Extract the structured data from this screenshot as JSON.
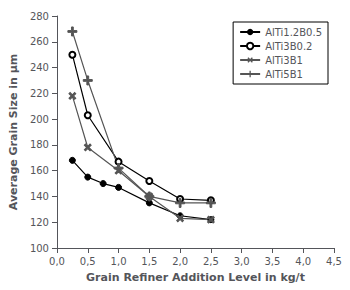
{
  "chart_data": {
    "type": "line",
    "xlabel": "Grain Refiner Addition Level in kg/t",
    "ylabel": "Average Grain Size in μm",
    "xlim": [
      0.0,
      4.5
    ],
    "ylim": [
      100,
      280
    ],
    "xticks": [
      {
        "value": 0.0,
        "label": "0,0"
      },
      {
        "value": 0.5,
        "label": "0,5"
      },
      {
        "value": 1.0,
        "label": "1,0"
      },
      {
        "value": 1.5,
        "label": "1,5"
      },
      {
        "value": 2.0,
        "label": "2,0"
      },
      {
        "value": 2.5,
        "label": "2,5"
      },
      {
        "value": 3.0,
        "label": "3,0"
      },
      {
        "value": 3.5,
        "label": "3,5"
      },
      {
        "value": 4.0,
        "label": "4,0"
      },
      {
        "value": 4.5,
        "label": "4,5"
      }
    ],
    "yticks": [
      100,
      120,
      140,
      160,
      180,
      200,
      220,
      240,
      260,
      280
    ],
    "grid": false,
    "legend": "upper right",
    "series": [
      {
        "name": "AlTi1.2B0.5",
        "color": "#000000",
        "marker": "circle",
        "x": [
          0.25,
          0.5,
          0.75,
          1.0,
          1.5,
          2.0,
          2.5
        ],
        "values": [
          168,
          155,
          150,
          147,
          135,
          125,
          122
        ]
      },
      {
        "name": "AlTi3B0.2",
        "color": "#000000",
        "marker": "open circle",
        "x": [
          0.25,
          0.5,
          1.0,
          1.5,
          2.0,
          2.5
        ],
        "values": [
          250,
          203,
          167,
          152,
          138,
          137
        ]
      },
      {
        "name": "AlTi3B1",
        "color": "#555555",
        "marker": "x",
        "x": [
          0.25,
          0.5,
          1.0,
          1.5,
          2.0,
          2.5
        ],
        "values": [
          218,
          178,
          160,
          140,
          123,
          122
        ]
      },
      {
        "name": "AlTi5B1",
        "color": "#555555",
        "marker": "plus",
        "x": [
          0.25,
          0.5,
          1.0,
          1.5,
          2.0,
          2.5
        ],
        "values": [
          268,
          230,
          162,
          140,
          135,
          135
        ]
      }
    ]
  }
}
